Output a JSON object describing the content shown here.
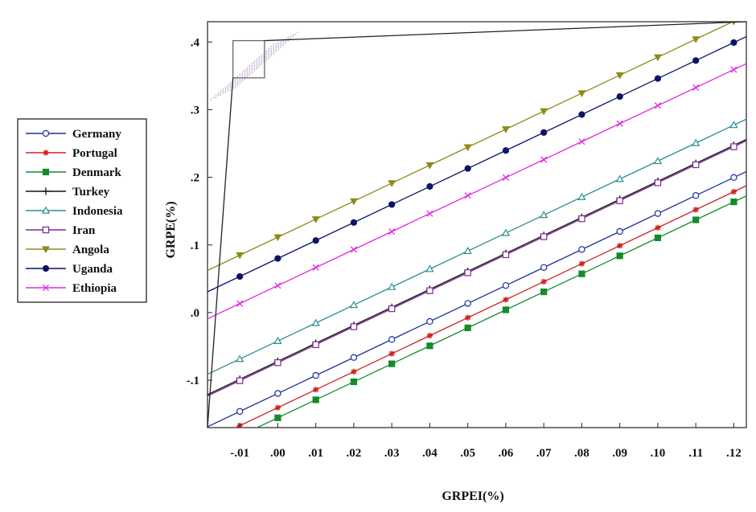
{
  "chart_data": {
    "type": "line",
    "xlabel": "GRPEI(%)",
    "ylabel": "GRPE(%)",
    "x": [
      -0.01,
      0.0,
      0.01,
      0.02,
      0.03,
      0.04,
      0.05,
      0.06,
      0.07,
      0.08,
      0.09,
      0.1,
      0.11,
      0.12
    ],
    "xticks": [
      {
        "v": -0.01,
        "label": "-.01"
      },
      {
        "v": 0.0,
        "label": ".00"
      },
      {
        "v": 0.01,
        "label": ".01"
      },
      {
        "v": 0.02,
        "label": ".02"
      },
      {
        "v": 0.03,
        "label": ".03"
      },
      {
        "v": 0.04,
        "label": ".04"
      },
      {
        "v": 0.05,
        "label": ".05"
      },
      {
        "v": 0.06,
        "label": ".06"
      },
      {
        "v": 0.07,
        "label": ".07"
      },
      {
        "v": 0.08,
        "label": ".08"
      },
      {
        "v": 0.09,
        "label": ".09"
      },
      {
        "v": 0.1,
        "label": ".10"
      },
      {
        "v": 0.11,
        "label": ".11"
      },
      {
        "v": 0.12,
        "label": ".12"
      }
    ],
    "yticks": [
      {
        "v": -0.1,
        "label": "-.1"
      },
      {
        "v": 0.0,
        "label": ".0"
      },
      {
        "v": 0.1,
        "label": ".1"
      },
      {
        "v": 0.2,
        "label": ".2"
      },
      {
        "v": 0.3,
        "label": ".3"
      },
      {
        "v": 0.4,
        "label": ".4"
      }
    ],
    "xlim": [
      -0.0185,
      0.1233
    ],
    "ylim": [
      -0.17,
      0.43
    ],
    "legend_position": "left",
    "series": [
      {
        "name": "Germany",
        "color": "#1f2f9a",
        "marker": "open-circle",
        "slope": 2.66,
        "intercept": -0.1195
      },
      {
        "name": "Portugal",
        "color": "#d02020",
        "marker": "star",
        "slope": 2.66,
        "intercept": -0.1405
      },
      {
        "name": "Denmark",
        "color": "#168a2a",
        "marker": "filled-square",
        "slope": 2.66,
        "intercept": -0.1555
      },
      {
        "name": "Turkey",
        "color": "#111111",
        "marker": "plus",
        "slope": 2.66,
        "intercept": -0.072
      },
      {
        "name": "Indonesia",
        "color": "#2a8f8f",
        "marker": "open-triangle",
        "slope": 2.66,
        "intercept": -0.042
      },
      {
        "name": "Iran",
        "color": "#7a2a8f",
        "marker": "open-square",
        "slope": 2.66,
        "intercept": -0.074
      },
      {
        "name": "Angola",
        "color": "#8f8a1a",
        "marker": "down-triangle",
        "slope": 2.66,
        "intercept": 0.1115
      },
      {
        "name": "Uganda",
        "color": "#0c1266",
        "marker": "filled-circle",
        "slope": 2.66,
        "intercept": 0.08
      },
      {
        "name": "Ethiopia",
        "color": "#e028e0",
        "marker": "x",
        "slope": 2.66,
        "intercept": 0.04
      }
    ],
    "inset_zoom": {
      "region_x": [
        -0.0118,
        -0.0035
      ],
      "region_y": [
        0.347,
        0.402
      ]
    }
  }
}
